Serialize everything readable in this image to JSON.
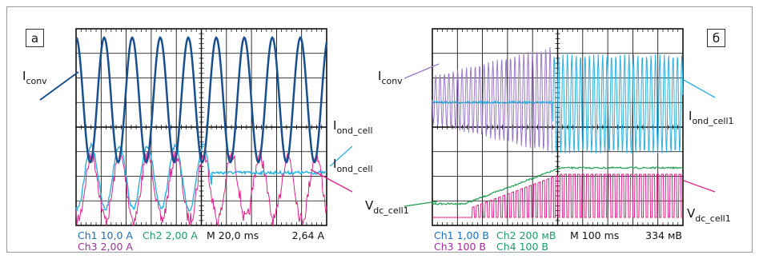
{
  "panel_a": {
    "tag": "а",
    "labels": {
      "i_conv": {
        "main": "I",
        "sub": "conv"
      },
      "i_ond_cell_upper": {
        "main": "I",
        "sub": "ond_cell"
      },
      "i_ond_cell_lower": {
        "main": "I",
        "sub": "ond_cell"
      }
    },
    "readout": {
      "ch1": "Ch1  10,0 A",
      "ch2": "Ch2  2,00 A",
      "timebase": "M 20,0 ms",
      "trigger": "2,64 A",
      "ch3": "Ch3  2,00 A"
    }
  },
  "panel_b": {
    "tag": "б",
    "labels": {
      "i_conv": {
        "main": "I",
        "sub": "conv"
      },
      "i_ond_cell1": {
        "main": "I",
        "sub": "ond_cell1"
      },
      "v_dc_cell1_left": {
        "main": "V",
        "sub": "dc_cell1"
      },
      "v_dc_cell1_right": {
        "main": "V",
        "sub": "dc_cell1"
      }
    },
    "readout": {
      "ch1": "Ch1  1,00 B",
      "ch2": "Ch2  200 мB",
      "timebase": "M 100 ms",
      "trigger": "334 мB",
      "ch3": "Ch3  100 B",
      "ch4": "Ch4  100 B"
    }
  }
}
